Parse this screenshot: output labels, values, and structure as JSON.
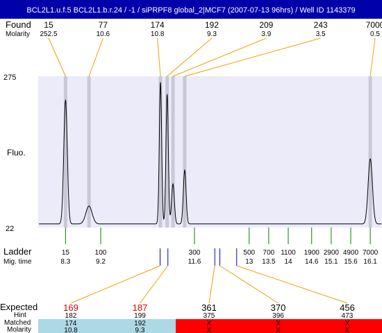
{
  "colors": {
    "header_bg": "#0000aa",
    "header_text": "#ffffff",
    "plot_bg": "#ebebfa",
    "peak_band": "#c8c8d8",
    "trace": "#000000",
    "callout_line": "#f0a000",
    "ladder_tick": "#008000",
    "marker_blue": "#0000cc",
    "expected_red_text": "#dd0000",
    "matched_blue_bg": "#add8e6",
    "unmatched_red_bg": "#ff0000"
  },
  "chart_data": {
    "type": "line",
    "title": "BCL2L1.u.f.5  BCL2L1.b.r.24 / -1 / siPRPF8 global_2|MCF7 (2007-07-13 96hrs) / Well ID 1143379",
    "ylabel": "Fluo.",
    "ylim": [
      22,
      275
    ],
    "y_ticks": [
      "275",
      "22"
    ],
    "xlim": [
      7.6,
      16.4
    ],
    "found_label": "Found",
    "molarity_label": "Molarity",
    "found_peaks": [
      {
        "size": "15",
        "molarity": "252.5",
        "time": 8.3
      },
      {
        "size": "77",
        "molarity": "10.6",
        "time": 8.9
      },
      {
        "size": "174",
        "molarity": "10.8",
        "time": 10.73
      },
      {
        "size": "192",
        "molarity": "9.3",
        "time": 10.9
      },
      {
        "size": "209",
        "molarity": "3.9",
        "time": 11.05
      },
      {
        "size": "243",
        "molarity": "3.5",
        "time": 11.35
      },
      {
        "size": "7000",
        "molarity": "0.5",
        "time": 16.1
      }
    ],
    "trace": {
      "baseline": 28,
      "peaks": [
        {
          "time": 8.3,
          "height": 235,
          "width": 0.045
        },
        {
          "time": 8.9,
          "height": 58,
          "width": 0.08
        },
        {
          "time": 10.73,
          "height": 265,
          "width": 0.03
        },
        {
          "time": 10.9,
          "height": 245,
          "width": 0.03
        },
        {
          "time": 11.05,
          "height": 95,
          "width": 0.035
        },
        {
          "time": 11.35,
          "height": 118,
          "width": 0.035
        },
        {
          "time": 16.1,
          "height": 137,
          "width": 0.055
        }
      ]
    },
    "ladder_label": "Ladder",
    "migtime_label": "Mig. time",
    "ladder": [
      {
        "size": "15",
        "time": "8.3",
        "t": 8.3
      },
      {
        "size": "100",
        "time": "9.2",
        "t": 9.2
      },
      {
        "size": "300",
        "time": "11.6",
        "t": 11.6
      },
      {
        "size": "500",
        "time": "13",
        "t": 13.0
      },
      {
        "size": "700",
        "time": "13.5",
        "t": 13.5
      },
      {
        "size": "1100",
        "time": "14",
        "t": 14.0
      },
      {
        "size": "1900",
        "time": "14.6",
        "t": 14.6
      },
      {
        "size": "2900",
        "time": "15.1",
        "t": 15.1
      },
      {
        "size": "4900",
        "time": "15.6",
        "t": 15.6
      },
      {
        "size": "7000",
        "time": "16.1",
        "t": 16.1
      }
    ],
    "expected_label": "Expected",
    "hint_label": "Hint",
    "matched_label": "Matched",
    "exp_molarity_label": "Molarity",
    "expected": [
      {
        "expected": "169",
        "hint": "182",
        "matched": "174",
        "molarity": "10.8",
        "is_matched": true,
        "marker_time": 10.72
      },
      {
        "expected": "187",
        "hint": "199",
        "matched": "192",
        "molarity": "9.3",
        "is_matched": true,
        "marker_time": 10.92
      },
      {
        "expected": "361",
        "hint": "375",
        "matched": "X",
        "molarity": "X",
        "is_matched": false,
        "marker_time": 12.12
      },
      {
        "expected": "370",
        "hint": "396",
        "matched": "X",
        "molarity": "X",
        "is_matched": false,
        "marker_time": 12.25
      },
      {
        "expected": "456",
        "hint": "473",
        "matched": "X",
        "molarity": "X",
        "is_matched": false,
        "marker_time": 12.68
      }
    ]
  }
}
